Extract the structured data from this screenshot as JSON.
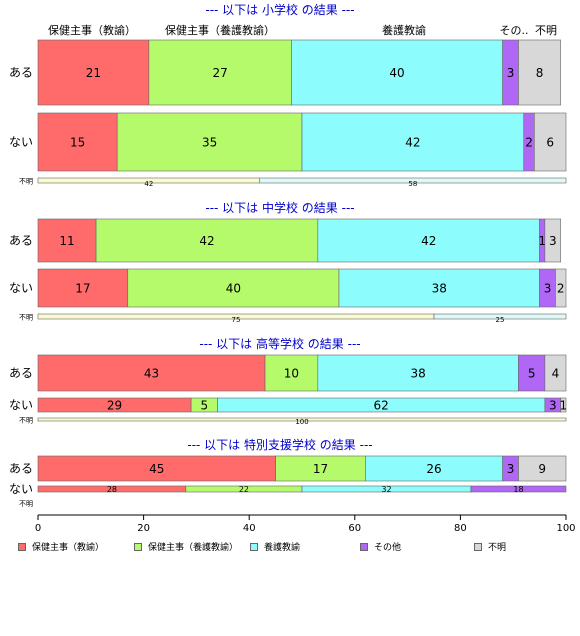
{
  "chart_data": {
    "type": "bar",
    "orientation": "horizontal",
    "stacked": true,
    "header_labels": [
      "保健主事（教諭）",
      "保健主事（養護教諭）",
      "養護教諭",
      "その..",
      "不明"
    ],
    "xlim": [
      0,
      100
    ],
    "xticks": [
      "0",
      "20",
      "40",
      "60",
      "80",
      "100"
    ],
    "legend": {
      "position": "bottom",
      "entries": [
        "保健主事（教諭）",
        "保健主事（養護教諭）",
        "養護教諭",
        "その他",
        "不明"
      ]
    },
    "colors": {
      "main": [
        "#ff6b6b",
        "#b5fa6b",
        "#8cfcfc",
        "#b067f5",
        "#d8d8d8"
      ],
      "unknown_row": [
        "#fafad2",
        "#dff8f8"
      ],
      "title": "#0000cc"
    },
    "panels": [
      {
        "title": "--- 以下は 小学校 の結果 ---",
        "rows": [
          {
            "label": "ある",
            "values": [
              21,
              27,
              40,
              3,
              8
            ],
            "labels": [
              "21",
              "27",
              "40",
              "3",
              "8"
            ]
          },
          {
            "label": "ない",
            "values": [
              15,
              35,
              42,
              2,
              6
            ],
            "labels": [
              "15",
              "35",
              "42",
              "2",
              "6"
            ]
          },
          {
            "label": "不明",
            "values": [
              42,
              58
            ],
            "labels": [
              "42",
              "58"
            ]
          }
        ]
      },
      {
        "title": "--- 以下は 中学校 の結果 ---",
        "rows": [
          {
            "label": "ある",
            "values": [
              11,
              42,
              42,
              1,
              3
            ],
            "labels": [
              "11",
              "42",
              "42",
              "1",
              "3"
            ]
          },
          {
            "label": "ない",
            "values": [
              17,
              40,
              38,
              3,
              2
            ],
            "labels": [
              "17",
              "40",
              "38",
              "3",
              "2"
            ]
          },
          {
            "label": "不明",
            "values": [
              75,
              25
            ],
            "labels": [
              "75",
              "25"
            ]
          }
        ]
      },
      {
        "title": "--- 以下は 高等学校 の結果 ---",
        "rows": [
          {
            "label": "ある",
            "values": [
              43,
              10,
              38,
              5,
              4
            ],
            "labels": [
              "43",
              "10",
              "38",
              "5",
              "4"
            ]
          },
          {
            "label": "ない",
            "values": [
              29,
              5,
              62,
              3,
              1
            ],
            "labels": [
              "29",
              "5",
              "62",
              "3",
              "1"
            ]
          },
          {
            "label": "不明",
            "values": [
              100
            ],
            "labels": [
              "100"
            ]
          }
        ]
      },
      {
        "title": "--- 以下は 特別支援学校 の結果 ---",
        "rows": [
          {
            "label": "ある",
            "values": [
              45,
              17,
              26,
              3,
              9
            ],
            "labels": [
              "45",
              "17",
              "26",
              "3",
              "9"
            ]
          },
          {
            "label": "ない",
            "values": [
              28,
              22,
              32,
              18
            ],
            "labels": [
              "28",
              "22",
              "32",
              "18"
            ]
          },
          {
            "label": "不明",
            "values": [],
            "labels": []
          }
        ]
      }
    ]
  }
}
